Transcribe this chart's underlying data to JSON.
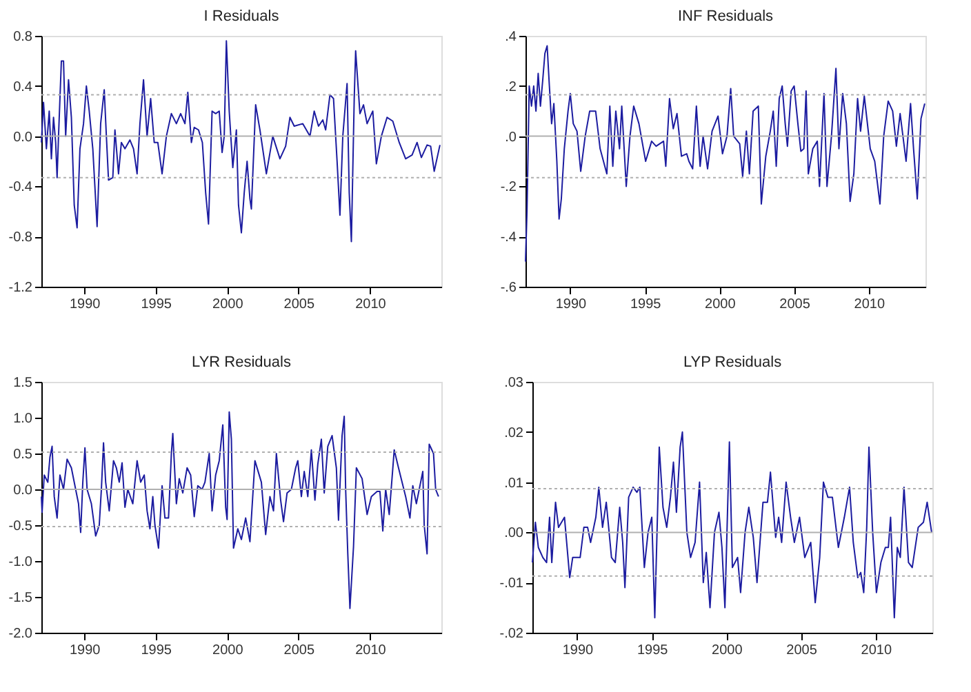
{
  "chart_data": [
    {
      "type": "line",
      "title": "I Residuals",
      "xlim": [
        1987,
        2015
      ],
      "xticks": [
        1990,
        1995,
        2000,
        2005,
        2010
      ],
      "ylim": [
        -1.2,
        0.8
      ],
      "yticks": [
        {
          "value": -1.2,
          "label": "-1.2"
        },
        {
          "value": -0.8,
          "label": "-0.8"
        },
        {
          "value": -0.4,
          "label": "-0.4"
        },
        {
          "value": 0,
          "label": "0.0"
        },
        {
          "value": 0.4,
          "label": "0.4"
        },
        {
          "value": 0.8,
          "label": "0.8"
        }
      ],
      "grid": false,
      "ref_lines": [
        {
          "axis": "y",
          "value": 0,
          "color": "#b0b0b0",
          "line_style": "solid"
        },
        {
          "axis": "y",
          "value": 0.33,
          "color": "#b0b0b0",
          "line_style": "dotted"
        },
        {
          "axis": "y",
          "value": -0.33,
          "color": "#b0b0b0",
          "line_style": "dotted"
        }
      ],
      "x": [
        1987.0,
        1987.15,
        1987.35,
        1987.55,
        1987.7,
        1987.85,
        1988.0,
        1988.1,
        1988.2,
        1988.4,
        1988.55,
        1988.7,
        1988.9,
        1989.1,
        1989.3,
        1989.5,
        1989.7,
        1989.95,
        1990.15,
        1990.35,
        1990.6,
        1990.9,
        1991.15,
        1991.4,
        1991.55,
        1991.7,
        1992.0,
        1992.15,
        1992.4,
        1992.6,
        1992.85,
        1993.2,
        1993.45,
        1993.7,
        1993.9,
        1994.15,
        1994.4,
        1994.65,
        1994.9,
        1995.15,
        1995.45,
        1995.75,
        1996.1,
        1996.45,
        1996.75,
        1997.05,
        1997.25,
        1997.5,
        1997.7,
        1998.0,
        1998.27,
        1998.5,
        1998.7,
        1998.95,
        1999.2,
        1999.45,
        1999.65,
        1999.8,
        1999.95,
        2000.15,
        2000.4,
        2000.65,
        2000.8,
        2001.0,
        2001.2,
        2001.4,
        2001.6,
        2001.7,
        2002.0,
        2002.3,
        2002.75,
        2003.2,
        2003.7,
        2004.1,
        2004.4,
        2004.7,
        2005.3,
        2005.8,
        2006.1,
        2006.4,
        2006.7,
        2006.9,
        2007.2,
        2007.45,
        2007.7,
        2007.9,
        2008.1,
        2008.4,
        2008.55,
        2008.7,
        2008.9,
        2009.0,
        2009.3,
        2009.55,
        2009.8,
        2010.2,
        2010.45,
        2010.8,
        2011.2,
        2011.6,
        2012.05,
        2012.5,
        2012.95,
        2013.3,
        2013.6,
        2014.0,
        2014.25,
        2014.5,
        2014.9
      ],
      "series": [
        {
          "color": "#1c1ca0",
          "values": [
            -0.05,
            0.27,
            -0.1,
            0.2,
            -0.18,
            0.15,
            -0.05,
            -0.33,
            0.0,
            0.6,
            0.6,
            0.0,
            0.45,
            0.15,
            -0.55,
            -0.73,
            -0.1,
            0.1,
            0.4,
            0.2,
            -0.1,
            -0.72,
            0.1,
            0.37,
            0.0,
            -0.35,
            -0.33,
            0.05,
            -0.3,
            -0.05,
            -0.1,
            -0.03,
            -0.1,
            -0.3,
            0.1,
            0.45,
            0.0,
            0.3,
            -0.05,
            -0.05,
            -0.3,
            0.0,
            0.18,
            0.1,
            0.18,
            0.1,
            0.35,
            -0.05,
            0.07,
            0.05,
            -0.05,
            -0.45,
            -0.7,
            0.2,
            0.18,
            0.2,
            -0.13,
            0.0,
            0.76,
            0.2,
            -0.25,
            0.05,
            -0.55,
            -0.77,
            -0.45,
            -0.2,
            -0.5,
            -0.58,
            0.25,
            0.05,
            -0.3,
            0.0,
            -0.18,
            -0.08,
            0.15,
            0.08,
            0.1,
            0.0,
            0.2,
            0.08,
            0.13,
            0.05,
            0.33,
            0.3,
            -0.2,
            -0.63,
            0.0,
            0.42,
            -0.45,
            -0.84,
            0.3,
            0.68,
            0.18,
            0.25,
            0.1,
            0.2,
            -0.22,
            0.0,
            0.15,
            0.12,
            -0.05,
            -0.18,
            -0.15,
            -0.05,
            -0.17,
            -0.07,
            -0.08,
            -0.28,
            -0.07
          ]
        }
      ]
    },
    {
      "type": "line",
      "title": "INF Residuals",
      "xlim": [
        1987,
        2013.8
      ],
      "xticks": [
        1990,
        1995,
        2000,
        2005,
        2010
      ],
      "ylim": [
        -0.6,
        0.4
      ],
      "yticks": [
        {
          "value": -0.6,
          "label": "-.6"
        },
        {
          "value": -0.4,
          "label": "-.4"
        },
        {
          "value": -0.2,
          "label": "-.2"
        },
        {
          "value": 0,
          "label": ".0"
        },
        {
          "value": 0.2,
          "label": ".2"
        },
        {
          "value": 0.4,
          "label": ".4"
        }
      ],
      "grid": false,
      "ref_lines": [
        {
          "axis": "y",
          "value": 0,
          "color": "#b0b0b0",
          "line_style": "solid"
        },
        {
          "axis": "y",
          "value": 0.165,
          "color": "#b0b0b0",
          "line_style": "dotted"
        },
        {
          "axis": "y",
          "value": -0.165,
          "color": "#b0b0b0",
          "line_style": "dotted"
        }
      ],
      "x": [
        1987.0,
        1987.1,
        1987.25,
        1987.4,
        1987.55,
        1987.7,
        1987.85,
        1988.0,
        1988.15,
        1988.3,
        1988.45,
        1988.6,
        1988.75,
        1988.9,
        1989.1,
        1989.25,
        1989.4,
        1989.6,
        1989.85,
        1990.0,
        1990.2,
        1990.45,
        1990.7,
        1991.0,
        1991.3,
        1991.7,
        1992.0,
        1992.45,
        1992.65,
        1992.85,
        1993.05,
        1993.3,
        1993.45,
        1993.75,
        1994.0,
        1994.25,
        1994.6,
        1995.05,
        1995.45,
        1995.75,
        1996.25,
        1996.4,
        1996.65,
        1996.9,
        1997.15,
        1997.45,
        1997.8,
        1997.95,
        1998.2,
        1998.45,
        1998.7,
        1998.9,
        1999.2,
        1999.5,
        1999.9,
        2000.2,
        2000.5,
        2000.75,
        2000.95,
        2001.35,
        2001.55,
        2001.8,
        2002.0,
        2002.25,
        2002.6,
        2002.8,
        2003.1,
        2003.4,
        2003.6,
        2003.8,
        2004.0,
        2004.2,
        2004.4,
        2004.55,
        2004.8,
        2005.0,
        2005.25,
        2005.45,
        2005.65,
        2005.8,
        2005.95,
        2006.25,
        2006.55,
        2006.7,
        2007.0,
        2007.2,
        2007.5,
        2007.8,
        2008.0,
        2008.25,
        2008.5,
        2008.75,
        2009.0,
        2009.25,
        2009.45,
        2009.7,
        2010.1,
        2010.4,
        2010.75,
        2011.0,
        2011.3,
        2011.6,
        2011.85,
        2012.1,
        2012.5,
        2012.8,
        2013.0,
        2013.25,
        2013.5,
        2013.75
      ],
      "series": [
        {
          "color": "#1c1ca0",
          "values": [
            -0.5,
            -0.3,
            0.2,
            0.12,
            0.2,
            0.1,
            0.25,
            0.12,
            0.22,
            0.33,
            0.36,
            0.2,
            0.05,
            0.13,
            -0.1,
            -0.33,
            -0.25,
            -0.05,
            0.1,
            0.17,
            0.05,
            0.02,
            -0.14,
            0.0,
            0.1,
            0.1,
            -0.05,
            -0.15,
            0.12,
            -0.12,
            0.1,
            -0.05,
            0.12,
            -0.2,
            0.0,
            0.12,
            0.05,
            -0.1,
            -0.02,
            -0.04,
            -0.02,
            -0.12,
            0.15,
            0.03,
            0.09,
            -0.08,
            -0.07,
            -0.1,
            -0.13,
            0.12,
            -0.12,
            0.0,
            -0.13,
            0.02,
            0.08,
            -0.07,
            0.0,
            0.19,
            0.0,
            -0.03,
            -0.16,
            0.02,
            -0.15,
            0.1,
            0.12,
            -0.27,
            -0.08,
            0.02,
            0.1,
            -0.12,
            0.15,
            0.2,
            0.05,
            -0.04,
            0.18,
            0.2,
            0.05,
            -0.06,
            -0.05,
            0.18,
            -0.15,
            -0.05,
            -0.02,
            -0.2,
            0.17,
            -0.2,
            0.0,
            0.27,
            -0.05,
            0.17,
            0.05,
            -0.26,
            -0.15,
            0.15,
            0.02,
            0.16,
            -0.05,
            -0.1,
            -0.27,
            0.0,
            0.14,
            0.1,
            -0.04,
            0.09,
            -0.1,
            0.13,
            -0.05,
            -0.25,
            0.07,
            0.13
          ]
        }
      ]
    },
    {
      "type": "line",
      "title": "LYR Residuals",
      "xlim": [
        1987,
        2015
      ],
      "xticks": [
        1990,
        1995,
        2000,
        2005,
        2010
      ],
      "ylim": [
        -2.0,
        1.5
      ],
      "yticks": [
        {
          "value": -2.0,
          "label": "-2.0"
        },
        {
          "value": -1.5,
          "label": "-1.5"
        },
        {
          "value": -1.0,
          "label": "-1.0"
        },
        {
          "value": -0.5,
          "label": "-0.5"
        },
        {
          "value": 0,
          "label": "0.0"
        },
        {
          "value": 0.5,
          "label": "0.5"
        },
        {
          "value": 1.0,
          "label": "1.0"
        },
        {
          "value": 1.5,
          "label": "1.5"
        }
      ],
      "grid": false,
      "ref_lines": [
        {
          "axis": "y",
          "value": 0,
          "color": "#b0b0b0",
          "line_style": "solid"
        },
        {
          "axis": "y",
          "value": 0.52,
          "color": "#b0b0b0",
          "line_style": "dotted"
        },
        {
          "axis": "y",
          "value": -0.52,
          "color": "#b0b0b0",
          "line_style": "dotted"
        }
      ],
      "x": [
        1987.0,
        1987.05,
        1987.2,
        1987.45,
        1987.6,
        1987.75,
        1987.9,
        1988.1,
        1988.3,
        1988.55,
        1988.8,
        1989.1,
        1989.4,
        1989.6,
        1989.75,
        1989.9,
        1990.05,
        1990.2,
        1990.5,
        1990.8,
        1991.05,
        1991.2,
        1991.35,
        1991.5,
        1991.75,
        1992.05,
        1992.25,
        1992.45,
        1992.65,
        1992.85,
        1993.05,
        1993.4,
        1993.7,
        1993.95,
        1994.2,
        1994.4,
        1994.6,
        1994.8,
        1994.95,
        1995.2,
        1995.45,
        1995.65,
        1995.9,
        1996.1,
        1996.2,
        1996.45,
        1996.65,
        1996.9,
        1997.2,
        1997.45,
        1997.7,
        1997.95,
        1998.25,
        1998.45,
        1998.75,
        1998.95,
        1999.2,
        1999.45,
        1999.7,
        1999.9,
        2000.0,
        2000.15,
        2000.3,
        2000.45,
        2000.75,
        2001.0,
        2001.3,
        2001.6,
        2001.95,
        2002.4,
        2002.7,
        2003.0,
        2003.25,
        2003.45,
        2003.75,
        2003.95,
        2004.2,
        2004.5,
        2004.8,
        2004.95,
        2005.2,
        2005.4,
        2005.65,
        2005.9,
        2006.15,
        2006.35,
        2006.6,
        2006.8,
        2007.05,
        2007.35,
        2007.65,
        2007.8,
        2008.05,
        2008.2,
        2008.3,
        2008.45,
        2008.6,
        2008.85,
        2009.05,
        2009.45,
        2009.8,
        2010.1,
        2010.5,
        2010.7,
        2010.9,
        2011.1,
        2011.35,
        2011.7,
        2012.0,
        2012.5,
        2012.8,
        2013.0,
        2013.25,
        2013.55,
        2013.7,
        2013.8,
        2014.0,
        2014.15,
        2014.45,
        2014.6,
        2014.8
      ],
      "series": [
        {
          "color": "#1c1ca0",
          "values": [
            -0.1,
            -0.32,
            0.2,
            0.1,
            0.45,
            0.6,
            -0.1,
            -0.4,
            0.2,
            0.0,
            0.42,
            0.3,
            0.0,
            -0.2,
            -0.6,
            0.1,
            0.58,
            0.0,
            -0.2,
            -0.65,
            -0.5,
            0.0,
            0.65,
            0.1,
            -0.3,
            0.4,
            0.3,
            0.1,
            0.37,
            -0.25,
            0.0,
            -0.2,
            0.4,
            0.1,
            0.2,
            -0.3,
            -0.55,
            -0.1,
            -0.5,
            -0.82,
            0.05,
            -0.4,
            -0.4,
            0.5,
            0.78,
            -0.2,
            0.15,
            -0.05,
            0.3,
            0.2,
            -0.38,
            0.05,
            0.0,
            0.1,
            0.5,
            -0.3,
            0.2,
            0.4,
            0.9,
            -0.25,
            -0.42,
            1.08,
            0.7,
            -0.82,
            -0.55,
            -0.7,
            -0.4,
            -0.73,
            0.4,
            0.1,
            -0.63,
            -0.1,
            -0.3,
            0.5,
            -0.15,
            -0.45,
            -0.05,
            0.0,
            0.3,
            0.4,
            -0.1,
            0.25,
            -0.1,
            0.55,
            -0.15,
            0.35,
            0.7,
            -0.05,
            0.6,
            0.75,
            0.3,
            -0.43,
            0.75,
            1.02,
            0.0,
            -0.9,
            -1.66,
            -0.8,
            0.3,
            0.15,
            -0.35,
            -0.1,
            -0.03,
            -0.03,
            -0.58,
            0.0,
            -0.35,
            0.55,
            0.3,
            -0.1,
            -0.4,
            0.05,
            -0.2,
            0.1,
            0.25,
            -0.5,
            -0.9,
            0.63,
            0.5,
            0.0,
            -0.1
          ]
        }
      ]
    },
    {
      "type": "line",
      "title": "LYP Residuals",
      "xlim": [
        1987,
        2013.8
      ],
      "xticks": [
        1990,
        1995,
        2000,
        2005,
        2010
      ],
      "ylim": [
        -0.02,
        0.03
      ],
      "yticks": [
        {
          "value": -0.02,
          "label": "-.02"
        },
        {
          "value": -0.01,
          "label": "-.01"
        },
        {
          "value": 0,
          "label": ".00"
        },
        {
          "value": 0.01,
          "label": ".01"
        },
        {
          "value": 0.02,
          "label": ".02"
        },
        {
          "value": 0.03,
          "label": ".03"
        }
      ],
      "grid": false,
      "ref_lines": [
        {
          "axis": "y",
          "value": 0,
          "color": "#b0b0b0",
          "line_style": "solid"
        },
        {
          "axis": "y",
          "value": 0.0087,
          "color": "#b0b0b0",
          "line_style": "dotted"
        },
        {
          "axis": "y",
          "value": -0.0087,
          "color": "#b0b0b0",
          "line_style": "dotted"
        }
      ],
      "x": [
        1987.0,
        1987.2,
        1987.4,
        1987.7,
        1987.95,
        1988.15,
        1988.3,
        1988.55,
        1988.75,
        1989.15,
        1989.5,
        1989.7,
        1990.2,
        1990.45,
        1990.7,
        1990.9,
        1991.25,
        1991.45,
        1991.7,
        1991.95,
        1992.3,
        1992.55,
        1992.85,
        1993.05,
        1993.2,
        1993.45,
        1993.75,
        1994.0,
        1994.2,
        1994.5,
        1994.75,
        1995.0,
        1995.2,
        1995.35,
        1995.5,
        1995.75,
        1996.0,
        1996.25,
        1996.45,
        1996.65,
        1996.9,
        1997.05,
        1997.35,
        1997.6,
        1997.9,
        1998.2,
        1998.45,
        1998.65,
        1998.9,
        1999.2,
        1999.5,
        1999.7,
        1999.9,
        2000.2,
        2000.4,
        2000.75,
        2000.95,
        2001.25,
        2001.5,
        2001.8,
        2002.05,
        2002.3,
        2002.45,
        2002.75,
        2002.95,
        2003.3,
        2003.5,
        2003.7,
        2004.0,
        2004.3,
        2004.55,
        2004.9,
        2005.25,
        2005.65,
        2005.95,
        2006.25,
        2006.5,
        2006.8,
        2007.1,
        2007.5,
        2007.9,
        2008.25,
        2008.5,
        2008.8,
        2009.0,
        2009.2,
        2009.4,
        2009.55,
        2009.8,
        2010.05,
        2010.35,
        2010.65,
        2010.85,
        2011.0,
        2011.25,
        2011.45,
        2011.65,
        2011.9,
        2012.2,
        2012.45,
        2012.85,
        2013.2,
        2013.45,
        2013.75
      ],
      "series": [
        {
          "color": "#1c1ca0",
          "values": [
            -0.006,
            0.002,
            -0.003,
            -0.005,
            -0.006,
            0.003,
            -0.006,
            0.006,
            0.001,
            0.003,
            -0.009,
            -0.005,
            -0.005,
            0.001,
            0.001,
            -0.002,
            0.003,
            0.009,
            0.001,
            0.006,
            -0.005,
            -0.006,
            0.005,
            -0.002,
            -0.011,
            0.007,
            0.009,
            0.008,
            0.009,
            -0.007,
            0.0,
            0.003,
            -0.017,
            0.0,
            0.017,
            0.005,
            0.001,
            0.007,
            0.014,
            0.004,
            0.017,
            0.02,
            0.0,
            -0.005,
            -0.002,
            0.01,
            -0.01,
            -0.004,
            -0.015,
            0.0,
            0.004,
            -0.003,
            -0.015,
            0.018,
            -0.007,
            -0.005,
            -0.012,
            0.0,
            0.005,
            -0.001,
            -0.01,
            0.0,
            0.006,
            0.006,
            0.012,
            -0.001,
            0.003,
            -0.002,
            0.01,
            0.003,
            -0.002,
            0.003,
            -0.005,
            -0.002,
            -0.014,
            -0.005,
            0.01,
            0.007,
            0.007,
            -0.003,
            0.003,
            0.009,
            -0.002,
            -0.009,
            -0.008,
            -0.012,
            0.001,
            0.017,
            0.0,
            -0.012,
            -0.006,
            -0.003,
            -0.003,
            0.003,
            -0.017,
            -0.003,
            -0.005,
            0.009,
            -0.006,
            -0.007,
            0.001,
            0.002,
            0.006,
            0.0
          ]
        }
      ]
    }
  ]
}
